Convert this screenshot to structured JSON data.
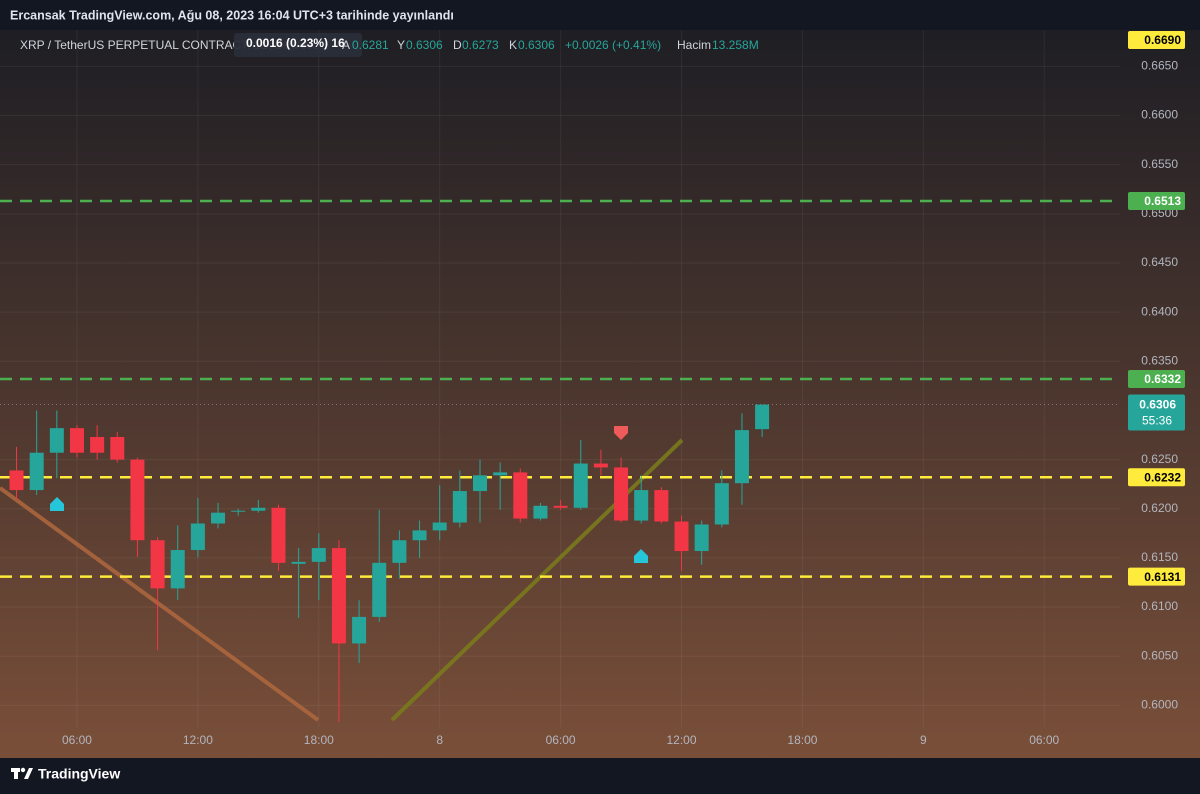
{
  "header": {
    "title": "Ercansak TradingView.com, Ağu 08, 2023 16:04 UTC+3 tarihinde yayınlandı"
  },
  "chart_data": {
    "type": "candlestick",
    "symbol": "XRP / TetherUS PERPETUAL CONTRACT, 1S, BINANCE",
    "legend_labels": {
      "open": "A",
      "high": "Y",
      "low": "D",
      "close": "K"
    },
    "change": "+0.0026 (+0.41%)",
    "volume_label": "Hacim",
    "volume": "13.258M",
    "tooltip": "0.0016 (0.23%) 16",
    "countdown": "55:36",
    "x": [
      3,
      4,
      5,
      6,
      7,
      8,
      9,
      10,
      11,
      12,
      13,
      14,
      15,
      16,
      17,
      18,
      19,
      20,
      21,
      22,
      23,
      24,
      25,
      26,
      27,
      28,
      29,
      30,
      31,
      32,
      33,
      34,
      35,
      36,
      37,
      38,
      39,
      40
    ],
    "open": [
      0.6239,
      0.6219,
      0.6257,
      0.6282,
      0.6273,
      0.6273,
      0.625,
      0.6168,
      0.6119,
      0.6158,
      0.6185,
      0.6197,
      0.6198,
      0.6201,
      0.6144,
      0.6146,
      0.616,
      0.6063,
      0.609,
      0.6145,
      0.6168,
      0.6178,
      0.6186,
      0.6218,
      0.6234,
      0.6237,
      0.619,
      0.6203,
      0.6201,
      0.6246,
      0.6242,
      0.6188,
      0.6219,
      0.6187,
      0.6157,
      0.6184,
      0.6226,
      0.6281
    ],
    "high": [
      0.6263,
      0.63,
      0.63,
      0.6285,
      0.6285,
      0.6278,
      0.6252,
      0.6171,
      0.6183,
      0.6211,
      0.6206,
      0.62,
      0.6209,
      0.6204,
      0.616,
      0.6175,
      0.6168,
      0.6107,
      0.6199,
      0.6178,
      0.6188,
      0.6224,
      0.6239,
      0.625,
      0.6247,
      0.6241,
      0.6206,
      0.6209,
      0.627,
      0.626,
      0.6252,
      0.6234,
      0.6222,
      0.6193,
      0.6188,
      0.6239,
      0.6297,
      0.6306
    ],
    "low": [
      0.6209,
      0.6214,
      0.6231,
      0.6252,
      0.625,
      0.6247,
      0.6151,
      0.6056,
      0.6107,
      0.6151,
      0.618,
      0.6193,
      0.6196,
      0.6137,
      0.6089,
      0.6107,
      0.5983,
      0.6043,
      0.6085,
      0.6129,
      0.615,
      0.6168,
      0.6181,
      0.6186,
      0.6199,
      0.6186,
      0.6188,
      0.6199,
      0.6199,
      0.6234,
      0.6186,
      0.6185,
      0.6185,
      0.6137,
      0.6143,
      0.6181,
      0.6204,
      0.6273
    ],
    "close": [
      0.6219,
      0.6257,
      0.6282,
      0.6257,
      0.6257,
      0.625,
      0.6168,
      0.6119,
      0.6158,
      0.6185,
      0.6196,
      0.6198,
      0.6201,
      0.6145,
      0.6146,
      0.616,
      0.6063,
      0.609,
      0.6145,
      0.6168,
      0.6178,
      0.6186,
      0.6218,
      0.6234,
      0.6237,
      0.619,
      0.6203,
      0.6201,
      0.6246,
      0.6242,
      0.6188,
      0.6219,
      0.6187,
      0.6157,
      0.6184,
      0.6226,
      0.628,
      0.6306
    ],
    "up_color": "#26a69a",
    "down_color": "#f23645",
    "xlim": [
      2.18,
      57.76
    ],
    "xticks": [
      {
        "value": 6,
        "label": "06:00"
      },
      {
        "value": 12,
        "label": "12:00"
      },
      {
        "value": 18,
        "label": "18:00"
      },
      {
        "value": 24,
        "label": "8"
      },
      {
        "value": 30,
        "label": "06:00"
      },
      {
        "value": 36,
        "label": "12:00"
      },
      {
        "value": 42,
        "label": "18:00"
      },
      {
        "value": 48,
        "label": "9"
      },
      {
        "value": 54,
        "label": "06:00"
      }
    ],
    "ylim": [
      0.5978,
      0.6687
    ],
    "yticks": [
      {
        "value": 0.6,
        "label": "0.6000"
      },
      {
        "value": 0.605,
        "label": "0.6050"
      },
      {
        "value": 0.61,
        "label": "0.6100"
      },
      {
        "value": 0.615,
        "label": "0.6150"
      },
      {
        "value": 0.62,
        "label": "0.6200"
      },
      {
        "value": 0.625,
        "label": "0.6250"
      },
      {
        "value": 0.635,
        "label": "0.6350"
      },
      {
        "value": 0.64,
        "label": "0.6400"
      },
      {
        "value": 0.645,
        "label": "0.6450"
      },
      {
        "value": 0.65,
        "label": "0.6500"
      },
      {
        "value": 0.655,
        "label": "0.6550"
      },
      {
        "value": 0.66,
        "label": "0.6600"
      },
      {
        "value": 0.665,
        "label": "0.6650"
      }
    ],
    "grid": true,
    "price_levels": [
      {
        "value": 0.6513,
        "color": "#4caf50"
      },
      {
        "value": 0.6332,
        "color": "#4caf50"
      },
      {
        "value": 0.6232,
        "color": "#ffeb3b"
      },
      {
        "value": 0.6131,
        "color": "#ffeb3b"
      }
    ],
    "scale_marker": {
      "value": 0.669,
      "label": "0.6690",
      "color": "#ffeb3b"
    }
  },
  "footer": {
    "logo": "TradingView"
  }
}
